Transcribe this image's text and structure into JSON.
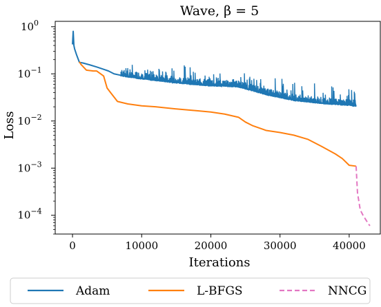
{
  "chart_data": {
    "type": "line",
    "title": "Wave, β = 5",
    "xlabel": "Iterations",
    "ylabel": "Loss",
    "xscale": "linear",
    "yscale": "log",
    "xlim": [
      -2500,
      44500
    ],
    "ylim": [
      4e-05,
      1.3
    ],
    "x_ticks": [
      0,
      10000,
      20000,
      30000,
      40000
    ],
    "x_tick_labels": [
      "0",
      "10000",
      "20000",
      "30000",
      "40000"
    ],
    "y_ticks": [
      0.0001,
      0.001,
      0.01,
      0.1,
      1
    ],
    "y_tick_labels": [
      "10",
      "10",
      "10",
      "10",
      "10"
    ],
    "y_tick_exponents": [
      "−4",
      "−3",
      "−2",
      "−1",
      "0"
    ],
    "grid": false,
    "legend_placement": "below",
    "series": [
      {
        "name": "Adam",
        "color": "#1f77b4",
        "style": "solid",
        "x": [
          0,
          100,
          200,
          300,
          600,
          1000,
          1500,
          2500,
          3500,
          4500,
          5200,
          6000,
          7000,
          8000,
          10000,
          12000,
          15000,
          18000,
          20000,
          22000,
          24000,
          26000,
          28000,
          30000,
          32000,
          34000,
          36000,
          38000,
          40000,
          41000
        ],
        "y": [
          0.42,
          0.8,
          0.4,
          0.34,
          0.25,
          0.175,
          0.17,
          0.155,
          0.14,
          0.125,
          0.115,
          0.1,
          0.093,
          0.088,
          0.08,
          0.074,
          0.066,
          0.06,
          0.057,
          0.056,
          0.054,
          0.045,
          0.037,
          0.032,
          0.028,
          0.026,
          0.024,
          0.023,
          0.022,
          0.021
        ],
        "noise_range_x": [
          7000,
          41000
        ],
        "noise_range_y_max": [
          0.16,
          0.14,
          0.13,
          0.14,
          0.17,
          0.11,
          0.12,
          0.09,
          0.11,
          0.08,
          0.1,
          0.07,
          0.06,
          0.065,
          0.055,
          0.05
        ]
      },
      {
        "name": "L-BFGS",
        "color": "#ff7f0e",
        "style": "solid",
        "x": [
          1000,
          1200,
          2000,
          3000,
          3500,
          4500,
          5000,
          5500,
          6500,
          8000,
          10000,
          12000,
          15000,
          18000,
          20000,
          22000,
          24000,
          25000,
          26000,
          28000,
          30000,
          32000,
          34000,
          36000,
          38000,
          39000,
          40000,
          41000
        ],
        "y": [
          0.18,
          0.16,
          0.12,
          0.115,
          0.115,
          0.09,
          0.05,
          0.04,
          0.026,
          0.023,
          0.021,
          0.02,
          0.018,
          0.0165,
          0.0155,
          0.014,
          0.012,
          0.0095,
          0.008,
          0.0063,
          0.0057,
          0.005,
          0.0041,
          0.0029,
          0.002,
          0.0016,
          0.00115,
          0.0011
        ]
      },
      {
        "name": "NNCG",
        "color": "#e377c2",
        "style": "dashed",
        "x": [
          41000,
          41200,
          41600,
          42000,
          42800,
          43000
        ],
        "y": [
          0.0011,
          0.0003,
          0.00013,
          0.0001,
          6.5e-05,
          6e-05
        ]
      }
    ]
  }
}
